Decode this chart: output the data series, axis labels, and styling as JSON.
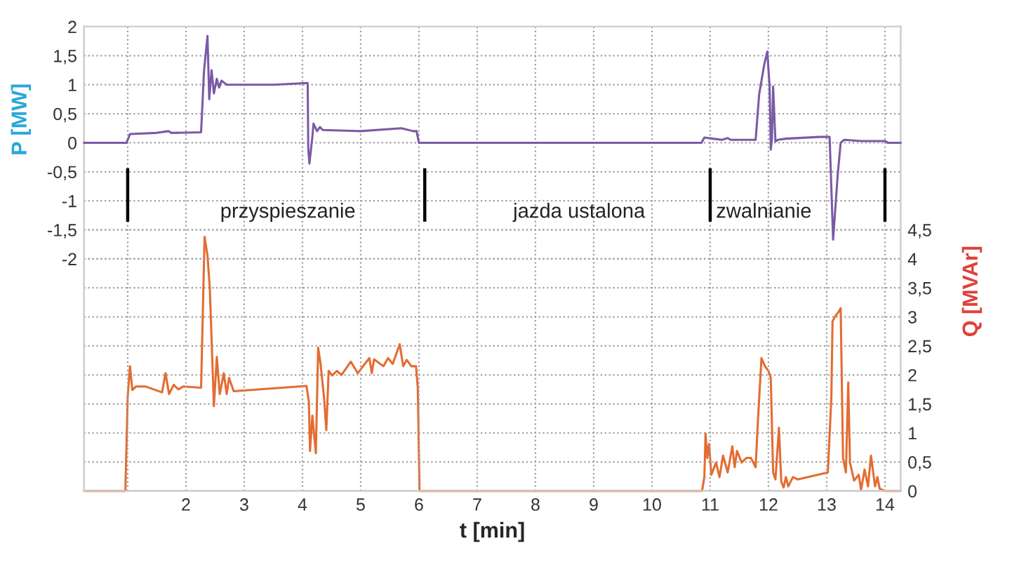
{
  "chart_data": {
    "type": "line",
    "xlabel": "t [min]",
    "ylabel": "P [MW]",
    "y2label": "Q [MVAr]",
    "xlim": [
      0.25,
      14.27
    ],
    "xticks": [
      {
        "value": 1,
        "label": null
      },
      2,
      3,
      4,
      5,
      6,
      7,
      8,
      9,
      10,
      11,
      12,
      13,
      14
    ],
    "ylim": [
      -6,
      2
    ],
    "yticks": [
      {
        "value": -2,
        "label": "-2"
      },
      {
        "value": -1.5,
        "label": "-1,5"
      },
      {
        "value": -1,
        "label": "-1"
      },
      {
        "value": -0.5,
        "label": "-0,5"
      },
      0,
      {
        "value": 0.5,
        "label": "0,5"
      },
      1,
      {
        "value": 1.5,
        "label": "1,5"
      },
      2
    ],
    "y2lim": [
      0,
      8
    ],
    "y2ticks": [
      0,
      {
        "value": 0.5,
        "label": "0,5"
      },
      1,
      {
        "value": 1.5,
        "label": "1,5"
      },
      2,
      {
        "value": 2.5,
        "label": "2,5"
      },
      3,
      {
        "value": 3.5,
        "label": "3,5"
      },
      4,
      {
        "value": 4.5,
        "label": "4,5"
      }
    ],
    "grid": true,
    "legend": false,
    "ref_lines": [
      {
        "axis": "x",
        "value": 1,
        "color": "#000000"
      },
      {
        "axis": "x",
        "value": 6.1,
        "color": "#000000"
      },
      {
        "axis": "x",
        "value": 11,
        "color": "#000000"
      },
      {
        "axis": "x",
        "value": 14,
        "color": "#000000"
      }
    ],
    "annotations": [
      "przyspieszanie",
      "jazda ustalona",
      "zwalnianie"
    ],
    "series": [
      {
        "color": "#7b5aa6",
        "x": [
          0.25,
          0.98,
          1.04,
          1.5,
          1.7,
          1.75,
          2.26,
          2.31,
          2.37,
          2.4,
          2.44,
          2.48,
          2.53,
          2.57,
          2.61,
          2.7,
          3.5,
          4.09,
          4.1,
          4.12,
          4.17,
          4.19,
          4.25,
          4.3,
          4.35,
          5.0,
          5.7,
          5.9,
          5.96,
          6.0,
          10.85,
          10.9,
          11.2,
          11.3,
          11.35,
          11.78,
          11.84,
          11.93,
          11.98,
          12.02,
          12.04,
          12.06,
          12.08,
          12.12,
          12.16,
          12.3,
          12.87,
          13.05,
          13.11,
          13.19,
          13.24,
          13.3,
          13.6,
          14.0,
          14.05,
          14.27
        ],
        "values": [
          0,
          0,
          0.15,
          0.17,
          0.2,
          0.17,
          0.18,
          1.23,
          1.84,
          0.75,
          1.25,
          0.85,
          1.1,
          0.95,
          1.07,
          1.0,
          1.0,
          1.03,
          -0.1,
          -0.36,
          0.1,
          0.33,
          0.2,
          0.27,
          0.22,
          0.2,
          0.25,
          0.2,
          0.2,
          0,
          0,
          0.09,
          0.05,
          0.08,
          0.05,
          0.05,
          0.83,
          1.36,
          1.57,
          0.97,
          -0.12,
          0.06,
          0.97,
          0.02,
          0.05,
          0.07,
          0.1,
          0.1,
          -1.67,
          -0.54,
          0.0,
          0.05,
          0.03,
          0.03,
          0.0,
          0.0
        ]
      },
      {
        "color": "#e46c32",
        "axis": "y2",
        "x": [
          0.25,
          0.96,
          1.0,
          1.04,
          1.08,
          1.14,
          1.31,
          1.59,
          1.65,
          1.71,
          1.79,
          1.87,
          1.95,
          2.26,
          2.32,
          2.37,
          2.41,
          2.48,
          2.53,
          2.58,
          2.65,
          2.7,
          2.74,
          2.82,
          4.07,
          4.11,
          4.13,
          4.17,
          4.23,
          4.27,
          4.31,
          4.37,
          4.41,
          4.45,
          4.51,
          4.59,
          4.67,
          4.83,
          4.95,
          5.07,
          5.15,
          5.19,
          5.23,
          5.39,
          5.47,
          5.55,
          5.67,
          5.73,
          5.79,
          5.87,
          5.95,
          5.98,
          6.01,
          10.86,
          10.9,
          10.92,
          10.95,
          10.98,
          11.02,
          11.1,
          11.16,
          11.22,
          11.3,
          11.38,
          11.42,
          11.46,
          11.54,
          11.62,
          11.7,
          11.78,
          11.82,
          11.88,
          11.94,
          12.0,
          12.04,
          12.08,
          12.12,
          12.18,
          12.22,
          12.26,
          12.3,
          12.34,
          12.42,
          12.5,
          13.02,
          13.08,
          13.1,
          13.14,
          13.2,
          13.24,
          13.28,
          13.33,
          13.37,
          13.4,
          13.47,
          13.55,
          13.59,
          13.65,
          13.71,
          13.76,
          13.83,
          13.87,
          13.91,
          14.0,
          14.27
        ],
        "values": [
          0,
          0,
          1.62,
          2.15,
          1.74,
          1.8,
          1.8,
          1.7,
          2.03,
          1.67,
          1.83,
          1.75,
          1.8,
          1.78,
          4.38,
          4.06,
          3.49,
          1.46,
          2.31,
          1.67,
          2.03,
          1.67,
          1.95,
          1.72,
          1.81,
          1.54,
          0.69,
          1.3,
          0.65,
          2.47,
          2.2,
          1.62,
          1.05,
          2.07,
          1.99,
          2.07,
          2.0,
          2.23,
          2.03,
          2.19,
          2.29,
          2.03,
          2.27,
          2.15,
          2.29,
          2.19,
          2.53,
          2.15,
          2.26,
          2.15,
          2.15,
          1.78,
          0,
          0,
          0.24,
          0.99,
          0.57,
          0.81,
          0.28,
          0.49,
          0.24,
          0.61,
          0.32,
          0.77,
          0.41,
          0.69,
          0.49,
          0.57,
          0.57,
          0.41,
          1.22,
          2.29,
          2.15,
          2.07,
          1.95,
          0.32,
          0.2,
          1.09,
          0.16,
          0.06,
          0.24,
          0.08,
          0.24,
          0.2,
          0.32,
          1.62,
          2.92,
          3.0,
          3.08,
          3.15,
          0.57,
          0.32,
          1.87,
          0.49,
          0.18,
          0.28,
          0.02,
          0.37,
          0.08,
          0.61,
          0.08,
          0.24,
          0.04,
          0,
          0
        ]
      }
    ]
  }
}
